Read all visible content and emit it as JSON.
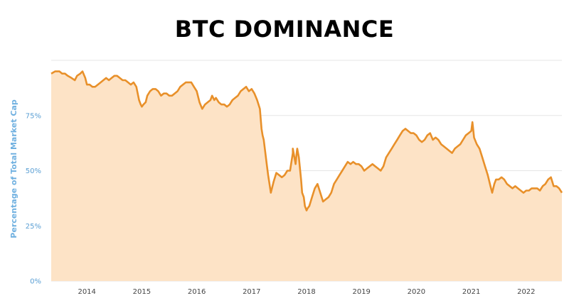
{
  "chart_data": {
    "type": "area",
    "title": "BTC DOMINANCE",
    "xlabel": "",
    "ylabel": "Percentage of Total Market Cap",
    "ylim": [
      0,
      100
    ],
    "xlim": [
      2013.35,
      2022.65
    ],
    "yticks": [
      "0%",
      "25%",
      "50%",
      "75%"
    ],
    "xticks": [
      "2014",
      "2015",
      "2016",
      "2017",
      "2018",
      "2019",
      "2020",
      "2021",
      "2022"
    ],
    "grid": true,
    "legend": "none",
    "colors": {
      "line": "#e8902a",
      "fill": "#fde3c6",
      "grid": "#e6e6e6",
      "ylabel": "#6fb0e0",
      "yticks": "#5a9fd4",
      "xticks": "#444444"
    },
    "series": [
      {
        "x": [
          2013.35,
          2013.42,
          2013.5,
          2013.55,
          2013.6,
          2013.65,
          2013.72,
          2013.78,
          2013.82,
          2013.88,
          2013.92,
          2013.97,
          2014.0,
          2014.05,
          2014.1,
          2014.15,
          2014.2,
          2014.25,
          2014.3,
          2014.35,
          2014.4,
          2014.45,
          2014.5,
          2014.55,
          2014.6,
          2014.65,
          2014.7,
          2014.75,
          2014.8,
          2014.85,
          2014.9,
          2014.95,
          2014.98,
          2015.0,
          2015.03,
          2015.07,
          2015.1,
          2015.15,
          2015.2,
          2015.25,
          2015.3,
          2015.35,
          2015.4,
          2015.45,
          2015.5,
          2015.55,
          2015.6,
          2015.65,
          2015.7,
          2015.75,
          2015.8,
          2015.85,
          2015.9,
          2015.95,
          2016.0,
          2016.05,
          2016.1,
          2016.15,
          2016.2,
          2016.25,
          2016.28,
          2016.32,
          2016.35,
          2016.4,
          2016.45,
          2016.5,
          2016.55,
          2016.6,
          2016.65,
          2016.7,
          2016.75,
          2016.8,
          2016.85,
          2016.9,
          2016.95,
          2017.0,
          2017.05,
          2017.1,
          2017.15,
          2017.18,
          2017.2,
          2017.22,
          2017.25,
          2017.28,
          2017.3,
          2017.35,
          2017.4,
          2017.45,
          2017.5,
          2017.55,
          2017.6,
          2017.65,
          2017.7,
          2017.75,
          2017.8,
          2017.83,
          2017.86,
          2017.9,
          2017.92,
          2017.95,
          2017.97,
          2018.0,
          2018.02,
          2018.05,
          2018.1,
          2018.15,
          2018.2,
          2018.25,
          2018.3,
          2018.35,
          2018.4,
          2018.45,
          2018.5,
          2018.55,
          2018.6,
          2018.65,
          2018.7,
          2018.75,
          2018.8,
          2018.85,
          2018.9,
          2018.95,
          2019.0,
          2019.05,
          2019.1,
          2019.15,
          2019.2,
          2019.25,
          2019.3,
          2019.35,
          2019.4,
          2019.45,
          2019.5,
          2019.55,
          2019.6,
          2019.65,
          2019.7,
          2019.75,
          2019.8,
          2019.85,
          2019.9,
          2019.95,
          2020.0,
          2020.05,
          2020.1,
          2020.15,
          2020.2,
          2020.25,
          2020.3,
          2020.35,
          2020.4,
          2020.45,
          2020.5,
          2020.55,
          2020.6,
          2020.65,
          2020.7,
          2020.75,
          2020.8,
          2020.85,
          2020.9,
          2020.95,
          2021.0,
          2021.03,
          2021.05,
          2021.1,
          2021.15,
          2021.2,
          2021.25,
          2021.3,
          2021.35,
          2021.38,
          2021.42,
          2021.45,
          2021.5,
          2021.55,
          2021.6,
          2021.65,
          2021.7,
          2021.75,
          2021.8,
          2021.85,
          2021.9,
          2021.95,
          2022.0,
          2022.05,
          2022.1,
          2022.15,
          2022.2,
          2022.25,
          2022.3,
          2022.35,
          2022.4,
          2022.45,
          2022.5,
          2022.55,
          2022.6,
          2022.65
        ],
        "y": [
          94,
          95,
          95,
          94,
          94,
          93,
          92,
          91,
          93,
          94,
          95,
          92,
          89,
          89,
          88,
          88,
          89,
          90,
          91,
          92,
          91,
          92,
          93,
          93,
          92,
          91,
          91,
          90,
          89,
          90,
          88,
          82,
          80,
          79,
          80,
          81,
          84,
          86,
          87,
          87,
          86,
          84,
          85,
          85,
          84,
          84,
          85,
          86,
          88,
          89,
          90,
          90,
          90,
          88,
          86,
          81,
          78,
          80,
          81,
          82,
          84,
          82,
          83,
          81,
          80,
          80,
          79,
          80,
          82,
          83,
          84,
          86,
          87,
          88,
          86,
          87,
          85,
          82,
          78,
          69,
          66,
          64,
          58,
          52,
          48,
          40,
          45,
          49,
          48,
          47,
          48,
          50,
          50,
          58,
          53,
          60,
          56,
          46,
          40,
          38,
          34,
          32,
          33,
          34,
          38,
          42,
          44,
          40,
          36,
          37,
          38,
          40,
          44,
          46,
          48,
          50,
          52,
          54,
          53,
          54,
          53,
          53,
          52,
          50,
          51,
          52,
          53,
          52,
          51,
          50,
          52,
          56,
          58,
          60,
          62,
          64,
          66,
          68,
          69,
          68,
          67,
          67,
          66,
          64,
          63,
          64,
          66,
          67,
          64,
          65,
          64,
          62,
          61,
          60,
          59,
          58,
          60,
          61,
          62,
          64,
          66,
          67,
          68,
          70,
          65,
          62,
          60,
          56,
          52,
          48,
          43,
          40,
          44,
          46,
          46,
          47,
          46,
          44,
          43,
          42,
          43,
          42,
          41,
          40,
          41,
          41,
          42,
          42,
          42,
          41,
          43,
          44,
          46,
          47,
          43,
          43,
          42,
          40
        ],
        "peaks": [
          {
            "x": 2013.45,
            "y": 95
          },
          {
            "x": 2014.5,
            "y": 93
          },
          {
            "x": 2017.75,
            "y": 60
          },
          {
            "x": 2017.82,
            "y": 58
          },
          {
            "x": 2021.02,
            "y": 72
          }
        ]
      }
    ]
  }
}
